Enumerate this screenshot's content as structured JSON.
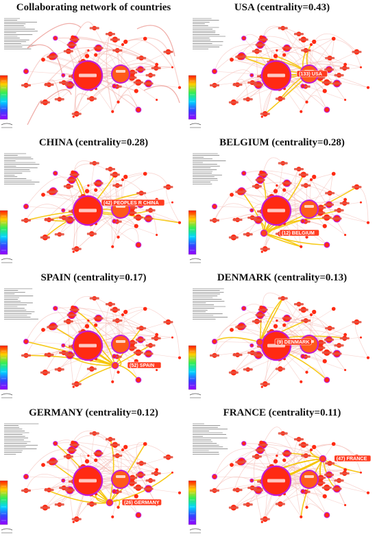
{
  "panels": [
    {
      "title": "Collaborating network of countries",
      "focus_label": ""
    },
    {
      "title": "USA (centrality=0.43)",
      "focus_label": "(133) USA"
    },
    {
      "title": "CHINA (centrality=0.28)",
      "focus_label": "(42) PEOPLES R CHINA"
    },
    {
      "title": "BELGIUM (centrality=0.28)",
      "focus_label": "(12) BELGIUM"
    },
    {
      "title": "SPAIN (centrality=0.17)",
      "focus_label": "(52) SPAIN"
    },
    {
      "title": "DENMARK (centrality=0.13)",
      "focus_label": "(9) DENMARK"
    },
    {
      "title": "GERMANY (centrality=0.12)",
      "focus_label": "(26) GERMANY"
    },
    {
      "title": "FRANCE (centrality=0.11)",
      "focus_label": "(47) FRANCE"
    }
  ],
  "colors": {
    "node_fill": "#ff2a12",
    "node_ring": "#c21bd6",
    "edge": "#f3b8b0",
    "highlight": "#f5c400",
    "legend_gradient": [
      "#ff1a00",
      "#ffd000",
      "#33ee55",
      "#00d5ff",
      "#3344ff",
      "#9900ff"
    ]
  }
}
